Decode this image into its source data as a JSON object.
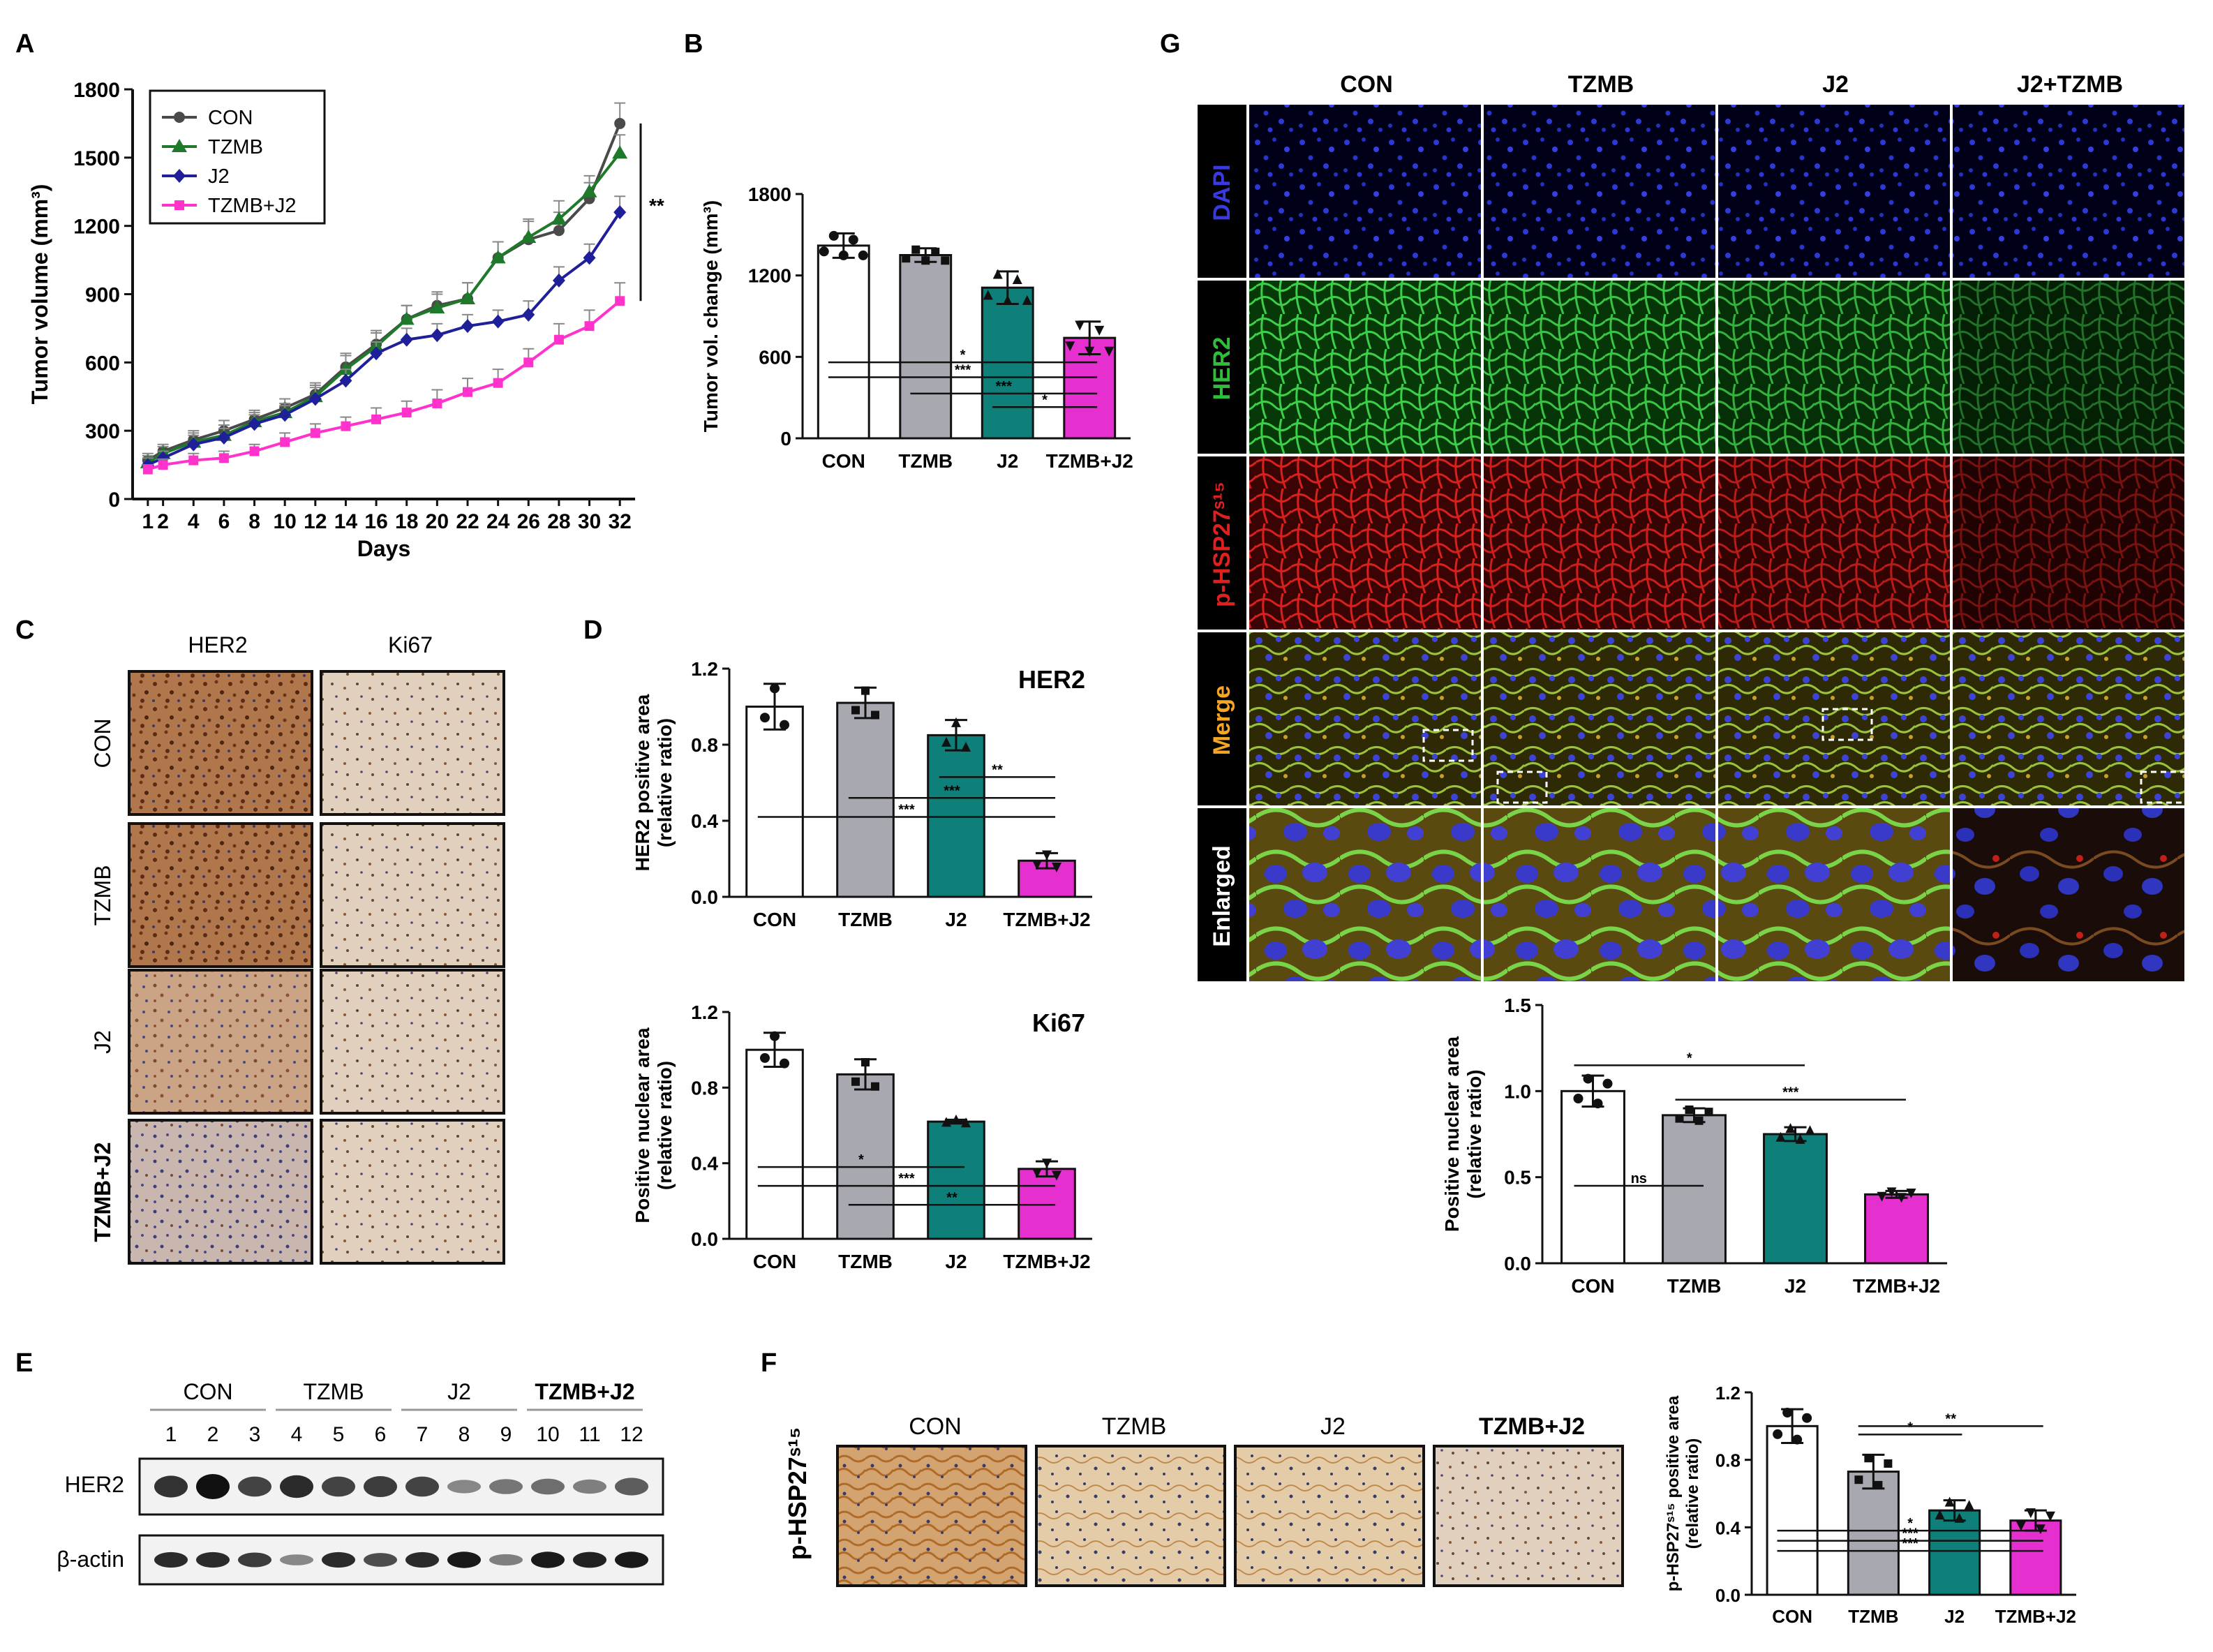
{
  "panel_labels": [
    "A",
    "B",
    "C",
    "D",
    "E",
    "F",
    "G"
  ],
  "colors": {
    "con": "#ffffff",
    "tzmb": "#a8a8b0",
    "j2": "#0f7f7a",
    "combo": "#e62fcf",
    "con_line": "#4a4a4a",
    "tzmb_line": "#1e7a2a",
    "j2_line": "#1f1f99",
    "combo_line": "#ff33cc",
    "ihc_brown": "#a4622f",
    "ihc_light": "#d9c2aa"
  },
  "chart_data": [
    {
      "id": "A",
      "type": "line",
      "xlabel": "Days",
      "ylabel": "Tumor volume (mm³)",
      "x": [
        1,
        2,
        4,
        6,
        8,
        10,
        12,
        14,
        16,
        18,
        20,
        22,
        24,
        26,
        28,
        30,
        32
      ],
      "ylim": [
        0,
        1800
      ],
      "yticks": [
        0,
        300,
        600,
        900,
        1200,
        1500,
        1800
      ],
      "series": [
        {
          "name": "CON",
          "values": [
            170,
            210,
            260,
            300,
            350,
            400,
            460,
            580,
            680,
            790,
            850,
            880,
            1060,
            1140,
            1180,
            1320,
            1650
          ],
          "err": [
            30,
            30,
            40,
            45,
            40,
            40,
            50,
            60,
            60,
            60,
            60,
            70,
            70,
            80,
            80,
            70,
            90
          ]
        },
        {
          "name": "TZMB",
          "values": [
            160,
            200,
            250,
            280,
            340,
            380,
            450,
            570,
            670,
            790,
            840,
            880,
            1060,
            1150,
            1230,
            1350,
            1520
          ],
          "err": [
            30,
            30,
            40,
            45,
            40,
            40,
            50,
            60,
            60,
            60,
            60,
            70,
            70,
            80,
            80,
            70,
            80
          ]
        },
        {
          "name": "J2",
          "values": [
            150,
            180,
            240,
            270,
            330,
            370,
            440,
            520,
            640,
            700,
            720,
            760,
            780,
            810,
            960,
            1060,
            1260
          ],
          "err": [
            30,
            30,
            40,
            40,
            40,
            40,
            50,
            50,
            50,
            50,
            50,
            50,
            50,
            60,
            60,
            60,
            70
          ]
        },
        {
          "name": "TZMB+J2",
          "values": [
            130,
            150,
            170,
            180,
            210,
            250,
            290,
            320,
            350,
            380,
            420,
            470,
            510,
            600,
            700,
            760,
            870
          ],
          "err": [
            20,
            25,
            30,
            30,
            30,
            40,
            40,
            40,
            50,
            50,
            60,
            60,
            60,
            60,
            70,
            70,
            80
          ]
        }
      ],
      "significance": "**"
    },
    {
      "id": "B",
      "type": "bar",
      "ylabel": "Tumor vol. change (mm³)",
      "categories": [
        "CON",
        "TZMB",
        "J2",
        "TZMB+J2"
      ],
      "values": [
        1420,
        1350,
        1110,
        740
      ],
      "err": [
        90,
        50,
        120,
        120
      ],
      "ylim": [
        0,
        1800
      ],
      "yticks": [
        0,
        600,
        1200,
        1800
      ],
      "sig": [
        "*",
        "***",
        "***",
        "*"
      ]
    },
    {
      "id": "D1",
      "type": "bar",
      "title": "HER2",
      "ylabel": "HER2 positive area (relative ratio)",
      "categories": [
        "CON",
        "TZMB",
        "J2",
        "TZMB+J2"
      ],
      "values": [
        1.0,
        1.02,
        0.85,
        0.19
      ],
      "err": [
        0.12,
        0.08,
        0.08,
        0.04
      ],
      "ylim": [
        0,
        1.2
      ],
      "yticks": [
        0.0,
        0.4,
        0.8,
        1.2
      ],
      "sig": [
        "**",
        "***",
        "***"
      ]
    },
    {
      "id": "D2",
      "type": "bar",
      "title": "Ki67",
      "ylabel": "Positive nuclear area (relative ratio)",
      "categories": [
        "CON",
        "TZMB",
        "J2",
        "TZMB+J2"
      ],
      "values": [
        1.0,
        0.87,
        0.62,
        0.37
      ],
      "err": [
        0.09,
        0.08,
        0.01,
        0.04
      ],
      "ylim": [
        0,
        1.2
      ],
      "yticks": [
        0.0,
        0.4,
        0.8,
        1.2
      ],
      "sig": [
        "*",
        "***",
        "**"
      ]
    },
    {
      "id": "F",
      "type": "bar",
      "ylabel": "p-HSP27ˢ¹⁵ positive area (relative ratio)",
      "categories": [
        "CON",
        "TZMB",
        "J2",
        "TZMB+J2"
      ],
      "values": [
        1.0,
        0.73,
        0.5,
        0.44
      ],
      "err": [
        0.1,
        0.1,
        0.06,
        0.06
      ],
      "ylim": [
        0,
        1.2
      ],
      "yticks": [
        0.0,
        0.4,
        0.8,
        1.2
      ],
      "sig": [
        "*",
        "**",
        "*",
        "***",
        "***"
      ]
    },
    {
      "id": "G",
      "type": "bar",
      "ylabel": "Positive nuclear area (relative ratio)",
      "categories": [
        "CON",
        "TZMB",
        "J2",
        "TZMB+J2"
      ],
      "values": [
        1.0,
        0.86,
        0.75,
        0.4
      ],
      "err": [
        0.09,
        0.04,
        0.04,
        0.02
      ],
      "ylim": [
        0,
        1.5
      ],
      "yticks": [
        0.0,
        0.5,
        1.0,
        1.5
      ],
      "sig": [
        "*",
        "***",
        "ns"
      ]
    }
  ],
  "panel_c": {
    "columns": [
      "HER2",
      "Ki67"
    ],
    "rows": [
      "CON",
      "TZMB",
      "J2",
      "TZMB+J2"
    ]
  },
  "panel_e": {
    "groups": [
      "CON",
      "TZMB",
      "J2",
      "TZMB+J2"
    ],
    "lanes": [
      "1",
      "2",
      "3",
      "4",
      "5",
      "6",
      "7",
      "8",
      "9",
      "10",
      "11",
      "12"
    ],
    "bands": [
      "HER2",
      "β-actin"
    ],
    "her2_intensity": [
      0.8,
      1.0,
      0.7,
      0.85,
      0.7,
      0.75,
      0.7,
      0.3,
      0.4,
      0.45,
      0.35,
      0.55
    ],
    "actin_intensity": [
      0.85,
      0.85,
      0.75,
      0.3,
      0.85,
      0.65,
      0.85,
      0.95,
      0.35,
      0.95,
      0.9,
      0.95
    ]
  },
  "panel_f": {
    "ylabel": "p-HSP27ˢ¹⁵",
    "columns": [
      "CON",
      "TZMB",
      "J2",
      "TZMB+J2"
    ]
  },
  "panel_g": {
    "columns": [
      "CON",
      "TZMB",
      "J2",
      "J2+TZMB"
    ],
    "rows": [
      "DAPI",
      "HER2",
      "p-HSP27ˢ¹⁵",
      "Merge",
      "Enlarged"
    ]
  }
}
